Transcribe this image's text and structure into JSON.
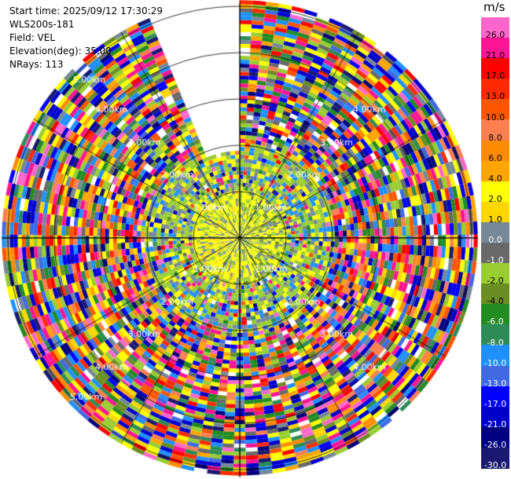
{
  "header": {
    "start_time": "Start time: 2025/09/12 17:30:29",
    "instrument": "WLS200s-181",
    "field": "Field: VEL",
    "elevation": "Elevation(deg): 35.00",
    "nrays": "NRays: 113"
  },
  "range_rings": [
    "1.00km",
    "2.00km",
    "3.00km",
    "4.00km",
    "5.00km"
  ],
  "colorbar": {
    "unit": "m/s",
    "ticks": [
      "26.0",
      "21.0",
      "17.0",
      "13.0",
      "10.0",
      "8.0",
      "6.0",
      "4.0",
      "2.0",
      "1.0",
      "0.0",
      "-1.0",
      "-2.0",
      "-4.0",
      "-6.0",
      "-8.0",
      "-10.0",
      "-13.0",
      "-17.0",
      "-21.0",
      "-26.0",
      "-30.0"
    ],
    "colors": [
      "#ff66cc",
      "#ff1493",
      "#ff0000",
      "#ff2a00",
      "#ff5500",
      "#ff7f50",
      "#ff8c00",
      "#ffa500",
      "#ffff00",
      "#ffd700",
      "#778899",
      "#696969",
      "#9acd32",
      "#6b8e23",
      "#228b22",
      "#2e8b57",
      "#1e90ff",
      "#4169e1",
      "#0000ff",
      "#0000cd",
      "#000080",
      "#191970"
    ]
  }
}
